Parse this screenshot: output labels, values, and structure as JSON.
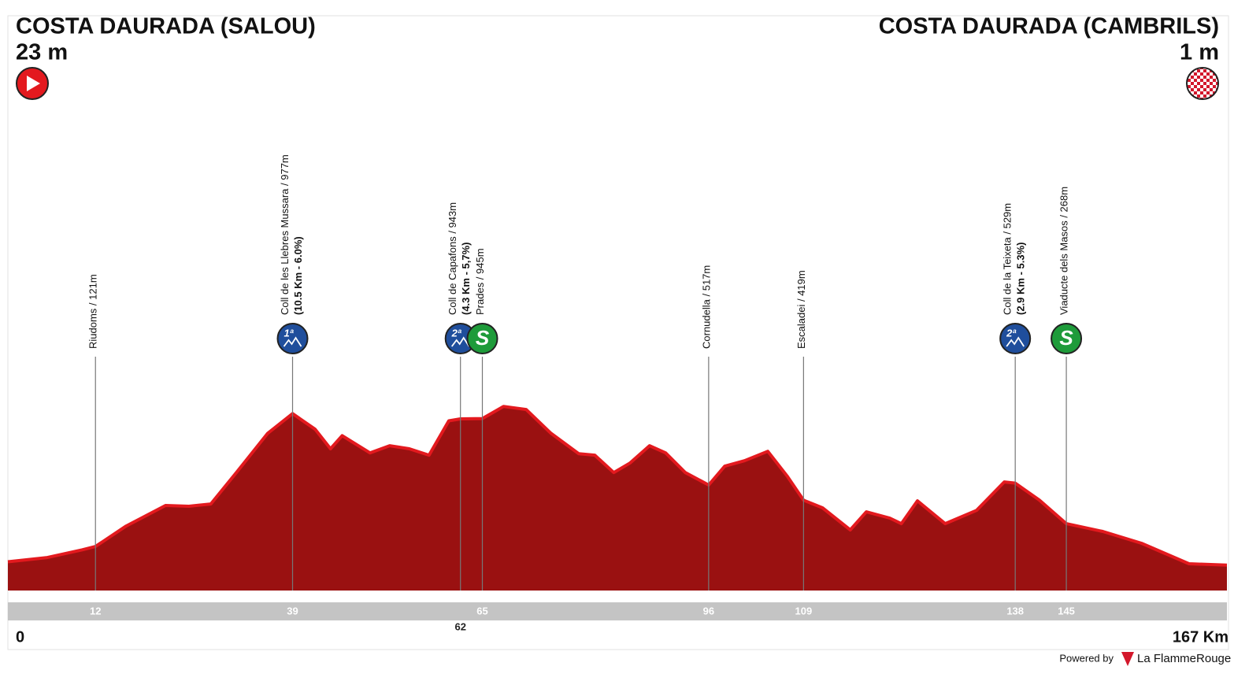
{
  "header": {
    "start_name": "COSTA DAURADA (SALOU)",
    "start_altitude": "23 m",
    "finish_name": "COSTA DAURADA (CAMBRILS)",
    "finish_altitude": "1 m"
  },
  "chart_data": {
    "type": "area",
    "color": "#9a1111",
    "edge_color": "#e3191e",
    "x": [
      0,
      5.4,
      10.2,
      12,
      16.2,
      21.6,
      24.8,
      27.8,
      31.3,
      35.6,
      39,
      42.1,
      44.2,
      45.8,
      49.6,
      52.3,
      55,
      57.7,
      60.4,
      62,
      65,
      67.9,
      71,
      74.4,
      78.2,
      80.4,
      83,
      85.2,
      87.9,
      90.1,
      92.8,
      96,
      98.2,
      100.9,
      104.1,
      106.8,
      109,
      111.6,
      115.4,
      117.6,
      120.8,
      122.4,
      124.6,
      128.4,
      132.7,
      136.5,
      138,
      141.3,
      145,
      150,
      155.3,
      161.8,
      167
    ],
    "values": [
      23,
      50,
      100,
      121,
      253,
      385,
      380,
      395,
      597,
      850,
      977,
      876,
      750,
      835,
      724,
      770,
      750,
      709,
      930,
      943,
      945,
      1023,
      1003,
      850,
      719,
      709,
      597,
      658,
      770,
      724,
      597,
      517,
      638,
      673,
      734,
      572,
      419,
      370,
      228,
      344,
      304,
      268,
      415,
      268,
      354,
      537,
      529,
      420,
      268,
      218,
      142,
      10,
      1
    ],
    "xlim": [
      0,
      167
    ],
    "ylim": [
      0,
      1100
    ],
    "xticks": [
      0,
      12,
      39,
      62,
      65,
      96,
      109,
      138,
      145,
      {
        "value": 167,
        "label": "167 Km"
      }
    ],
    "points": [
      {
        "x": 12,
        "label": "Riudoms / 121m"
      },
      {
        "x": 39,
        "label": "Coll de les Llebres Mussara / 977m",
        "detail": "(10.5 Km - 6.0%)",
        "badge": "1ª",
        "badge_color": "#1f4e9c"
      },
      {
        "x": 62,
        "label": "Coll de Capafons / 943m",
        "detail": "(4.3 Km - 5,7%)",
        "badge": "2ª",
        "badge_color": "#1f4e9c"
      },
      {
        "x": 65,
        "label": "Prades / 945m",
        "badge": "S",
        "badge_color": "#1e9b3a"
      },
      {
        "x": 96,
        "label": "Cornudella / 517m"
      },
      {
        "x": 109,
        "label": "Escaladei / 419m"
      },
      {
        "x": 138,
        "label": "Coll de la Teixeta / 529m",
        "detail": "(2.9 Km - 5.3%)",
        "badge": "2ª",
        "badge_color": "#1f4e9c"
      },
      {
        "x": 145,
        "label": "Viaducte dels Masos / 268m",
        "badge": "S",
        "badge_color": "#1e9b3a"
      }
    ]
  },
  "footer": {
    "powered_by": "Powered by",
    "brand": "La FlammeRouge"
  }
}
